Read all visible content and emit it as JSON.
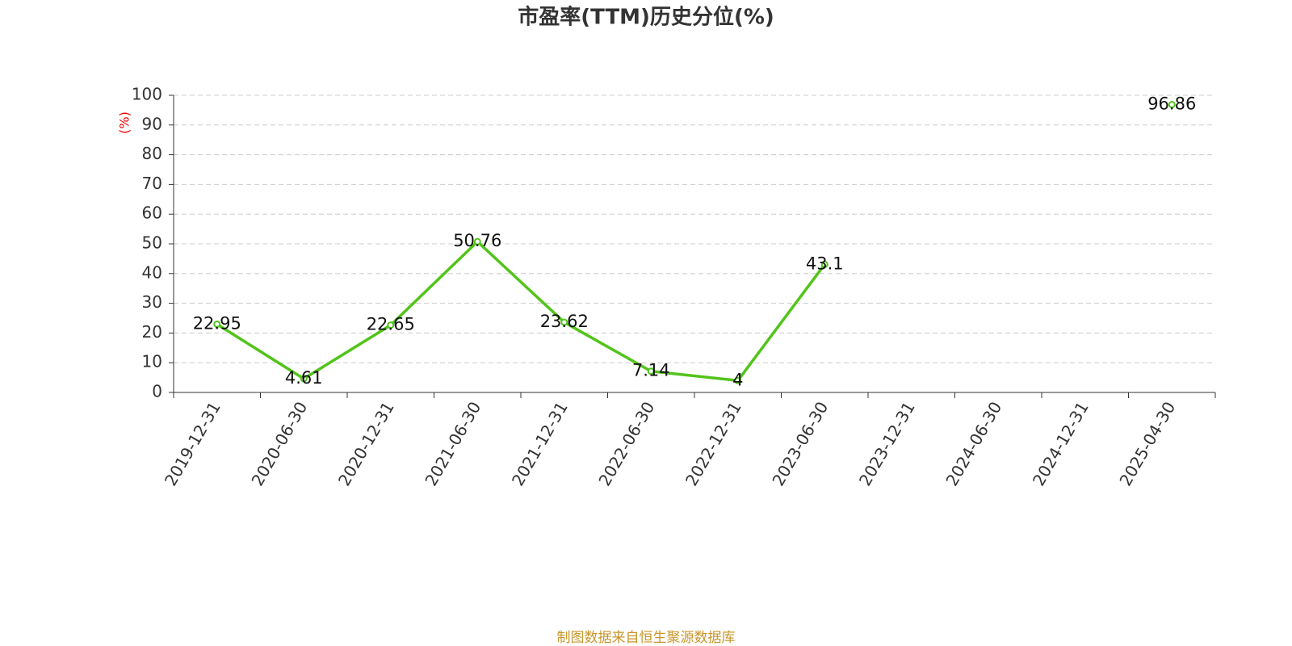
{
  "chart_data": {
    "type": "line",
    "title": "市盈率(TTM)历史分位(%)",
    "y_label": "(%)",
    "footer": "制图数据来自恒生聚源数据库",
    "categories": [
      "2019-12-31",
      "2020-06-30",
      "2020-12-31",
      "2021-06-30",
      "2021-12-31",
      "2022-06-30",
      "2022-12-31",
      "2023-06-30",
      "2023-12-31",
      "2024-06-30",
      "2024-12-31",
      "2025-04-30"
    ],
    "series": [
      {
        "name": "市盈率(TTM)历史分位",
        "color": "#52c41a",
        "values": [
          22.95,
          4.61,
          22.65,
          50.76,
          23.62,
          7.14,
          4,
          43.1,
          null,
          null,
          null,
          96.86
        ]
      }
    ],
    "ylim": [
      0,
      100
    ],
    "yticks": [
      0,
      10,
      20,
      30,
      40,
      50,
      60,
      70,
      80,
      90,
      100
    ],
    "grid": true
  }
}
